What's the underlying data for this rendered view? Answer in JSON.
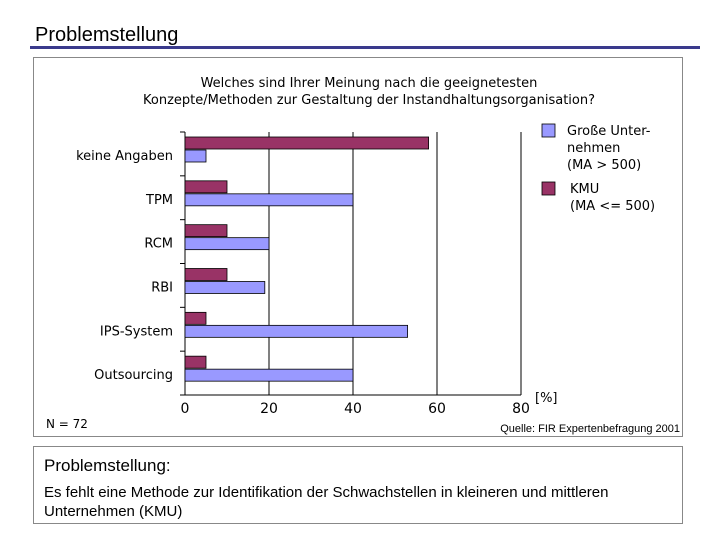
{
  "page": {
    "title": "Problemstellung",
    "accent_color": "#3a3a8c"
  },
  "chart_data": {
    "type": "bar",
    "orientation": "horizontal",
    "title_lines": [
      "Welches sind Ihrer Meinung nach die geeignetesten",
      "Konzepte/Methoden zur Gestaltung der Instandhaltungsorganisation?"
    ],
    "categories": [
      "keine Angaben",
      "TPM",
      "RCM",
      "RBI",
      "IPS-System",
      "Outsourcing"
    ],
    "series": [
      {
        "name": "KMU (MA <= 500)",
        "legend_lines": [
          "KMU",
          "(MA <= 500)"
        ],
        "color": "#993366",
        "values": [
          58,
          10,
          10,
          10,
          5,
          5
        ]
      },
      {
        "name": "Große Unternehmen (MA > 500)",
        "legend_lines": [
          "Große Unter-",
          "nehmen",
          "(MA > 500)"
        ],
        "color": "#9999ff",
        "values": [
          5,
          40,
          20,
          19,
          53,
          40
        ]
      }
    ],
    "xlim": [
      0,
      80
    ],
    "xticks": [
      0,
      20,
      40,
      60,
      80
    ],
    "xlabel": "[%]",
    "sample_size": "N = 72",
    "source": "Quelle: FIR Expertenbefragung 2001",
    "grid": true,
    "legend": "right"
  },
  "footer": {
    "heading": "Problemstellung:",
    "text": "Es fehlt eine Methode zur Identifikation der Schwachstellen in kleineren und mittleren Unternehmen (KMU)"
  }
}
